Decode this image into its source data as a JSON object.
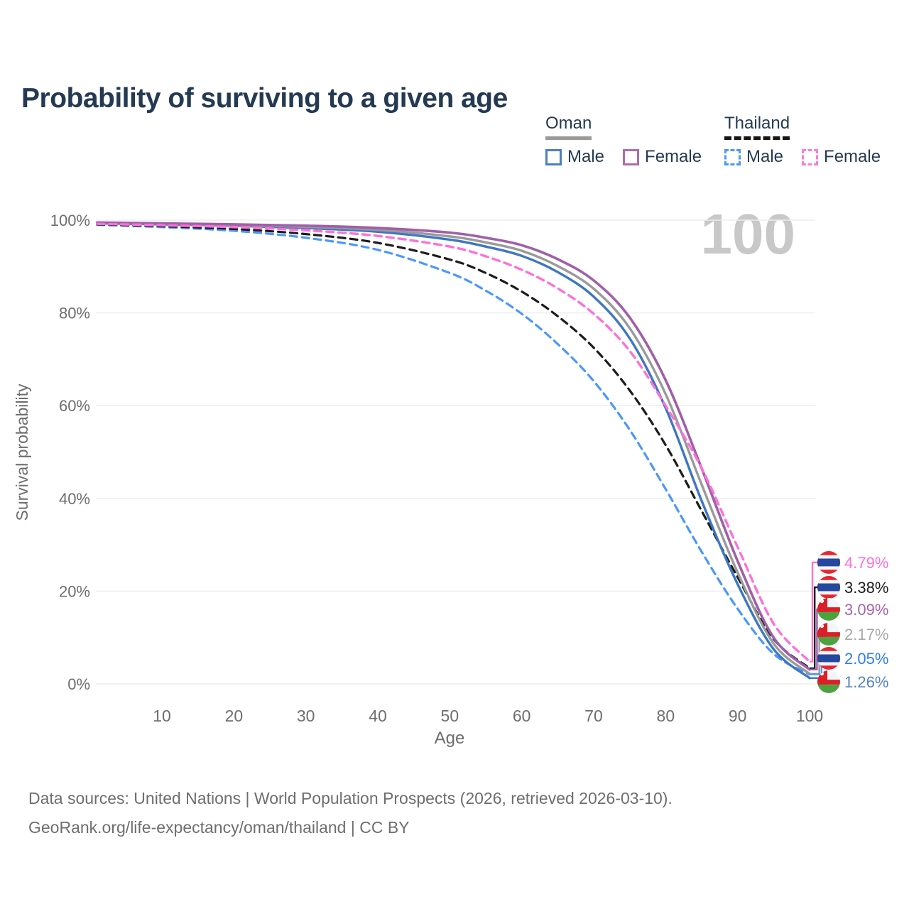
{
  "title": "Probability of surviving to a given age",
  "watermark": "100",
  "legend": {
    "groups": [
      {
        "label": "Oman",
        "style": "solid",
        "items": [
          {
            "label": "Male",
            "color": "#4a7fc1"
          },
          {
            "label": "Female",
            "color": "#b06ab0"
          }
        ]
      },
      {
        "label": "Thailand",
        "style": "dashed",
        "items": [
          {
            "label": "Male",
            "color": "#4b97ff"
          },
          {
            "label": "Female",
            "color": "#ff7ad9"
          }
        ]
      }
    ]
  },
  "chart_data": {
    "type": "line",
    "title": "Probability of surviving to a given age",
    "xlabel": "Age",
    "ylabel": "Survival probability",
    "xlim": [
      0,
      100
    ],
    "ylim": [
      0,
      100
    ],
    "grid": "horizontal",
    "x_ticks": [
      10,
      20,
      30,
      40,
      50,
      60,
      70,
      80,
      90,
      100
    ],
    "y_ticks": [
      {
        "value": 0,
        "label": "0%"
      },
      {
        "value": 20,
        "label": "20%"
      },
      {
        "value": 40,
        "label": "40%"
      },
      {
        "value": 60,
        "label": "60%"
      },
      {
        "value": 80,
        "label": "80%"
      },
      {
        "value": 100,
        "label": "100%"
      }
    ],
    "x": [
      1,
      10,
      20,
      30,
      40,
      50,
      55,
      60,
      65,
      70,
      75,
      80,
      85,
      90,
      95,
      100
    ],
    "series": [
      {
        "id": "thailand-male",
        "name": "Thailand Male",
        "color": "#4b97ff",
        "dash": true,
        "width": 3.2,
        "values": [
          99.0,
          98.5,
          97.7,
          96.2,
          93.6,
          88.6,
          84.8,
          79.8,
          73.3,
          65.3,
          54.8,
          42.0,
          28.5,
          16.2,
          6.5,
          2.05
        ]
      },
      {
        "id": "thailand-both",
        "name": "Thailand Both sexes",
        "color": "#1c1c1c",
        "dash": true,
        "width": 3.2,
        "values": [
          99.1,
          98.7,
          98.1,
          97.0,
          95.1,
          91.5,
          88.6,
          84.6,
          79.3,
          72.5,
          63.3,
          51.5,
          37.3,
          23.0,
          9.7,
          3.38
        ]
      },
      {
        "id": "oman-male",
        "name": "Oman Male",
        "color": "#3d77c2",
        "dash": false,
        "width": 3.4,
        "values": [
          99.3,
          99.1,
          98.8,
          98.3,
          97.5,
          95.8,
          94.3,
          92.3,
          88.8,
          83.5,
          74.5,
          59.5,
          39.5,
          21.5,
          7.5,
          1.26
        ]
      },
      {
        "id": "oman-both",
        "name": "Oman Both sexes",
        "color": "#9a9a9a",
        "dash": false,
        "width": 3.4,
        "values": [
          99.4,
          99.2,
          98.95,
          98.55,
          97.9,
          96.5,
          95.2,
          93.4,
          90.1,
          85.2,
          76.7,
          62.5,
          43.0,
          24.0,
          8.7,
          2.17
        ]
      },
      {
        "id": "oman-female",
        "name": "Oman Female",
        "color": "#a05fa8",
        "dash": false,
        "width": 3.6,
        "values": [
          99.5,
          99.3,
          99.1,
          98.8,
          98.3,
          97.3,
          96.2,
          94.6,
          91.6,
          87.0,
          79.0,
          65.5,
          46.5,
          26.5,
          10.0,
          3.09
        ]
      },
      {
        "id": "thailand-female",
        "name": "Thailand Female",
        "color": "#ff70d8",
        "dash": true,
        "width": 3.4,
        "values": [
          99.2,
          98.9,
          98.5,
          97.8,
          96.6,
          94.3,
          92.2,
          89.3,
          85.3,
          79.8,
          71.8,
          60.0,
          46.5,
          29.5,
          13.0,
          4.79
        ]
      }
    ],
    "end_labels": [
      {
        "text": "4.79%",
        "series": "thailand-female",
        "flag": "thailand",
        "color": "#ff70d8"
      },
      {
        "text": "3.38%",
        "series": "thailand-both",
        "flag": "thailand",
        "color": "#1c1c1c"
      },
      {
        "text": "3.09%",
        "series": "oman-female",
        "flag": "oman",
        "color": "#a963ae"
      },
      {
        "text": "2.17%",
        "series": "oman-both",
        "flag": "oman",
        "color": "#a8a8a8"
      },
      {
        "text": "2.05%",
        "series": "thailand-male",
        "flag": "thailand",
        "color": "#2e7cf6"
      },
      {
        "text": "1.26%",
        "series": "oman-male",
        "flag": "oman",
        "color": "#5581c4"
      }
    ],
    "legend_position": "top-right"
  },
  "flags": {
    "thailand": {
      "red": "#e8252f",
      "white": "#f4f5f8",
      "blue": "#24479f"
    },
    "oman": {
      "red": "#dc1f26",
      "white": "#f4f5f8",
      "green": "#4da23f"
    }
  },
  "colors": {
    "grid": "#ededed",
    "axis_text": "#6e6e6e",
    "title_text": "#243a52",
    "watermark": "#c8c8c8"
  },
  "footer": {
    "line1": "Data sources: United Nations | World Population Prospects (2026, retrieved 2026-03-10).",
    "line2": "GeoRank.org/life-expectancy/oman/thailand | CC BY"
  }
}
